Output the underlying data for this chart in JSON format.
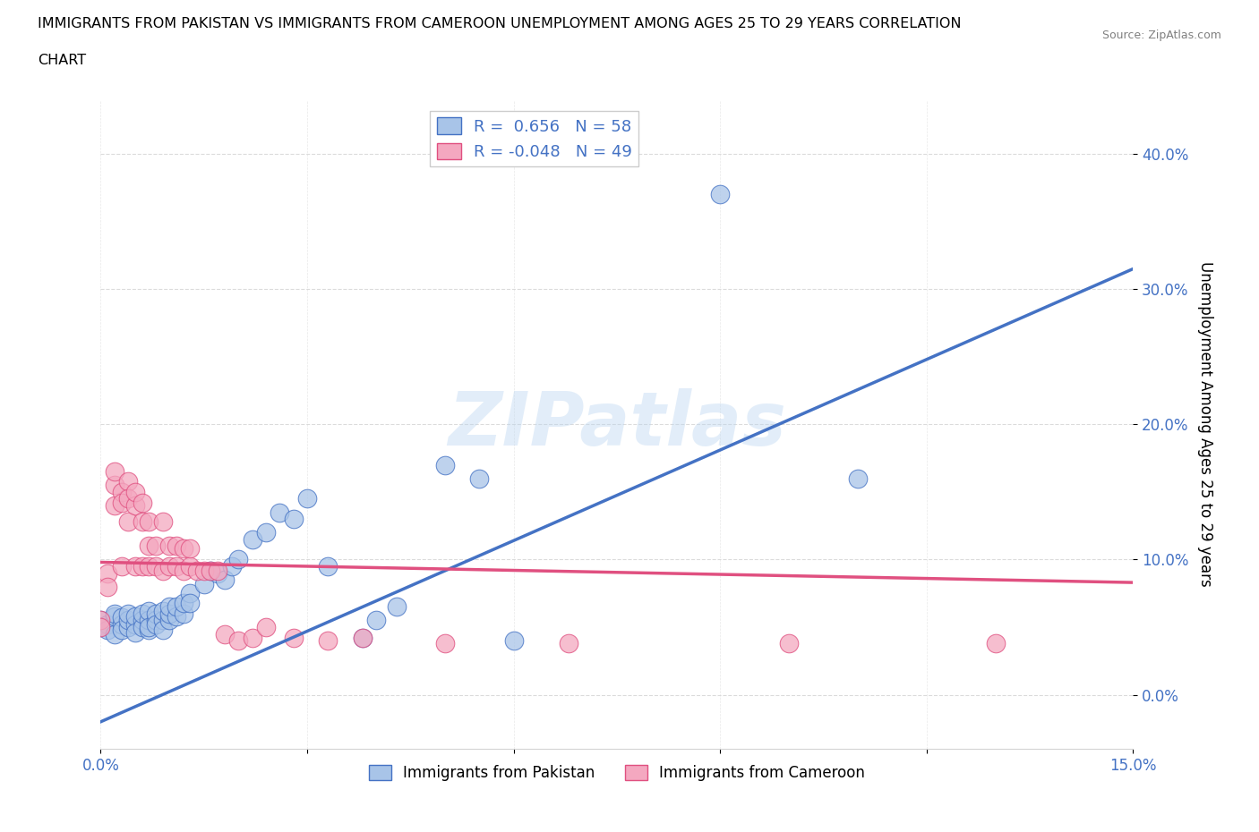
{
  "title_line1": "IMMIGRANTS FROM PAKISTAN VS IMMIGRANTS FROM CAMEROON UNEMPLOYMENT AMONG AGES 25 TO 29 YEARS CORRELATION",
  "title_line2": "CHART",
  "source_text": "Source: ZipAtlas.com",
  "ylabel": "Unemployment Among Ages 25 to 29 years",
  "xlim": [
    0.0,
    0.15
  ],
  "ylim": [
    -0.04,
    0.44
  ],
  "xticks": [
    0.0,
    0.03,
    0.06,
    0.09,
    0.12,
    0.15
  ],
  "xtick_labels": [
    "0.0%",
    "",
    "",
    "",
    "",
    "15.0%"
  ],
  "yticks": [
    0.0,
    0.1,
    0.2,
    0.3,
    0.4
  ],
  "ytick_labels": [
    "0.0%",
    "10.0%",
    "20.0%",
    "30.0%",
    "40.0%"
  ],
  "pakistan_color": "#a8c4e8",
  "cameroon_color": "#f4a8c0",
  "pakistan_line_color": "#4472c4",
  "cameroon_line_color": "#e05080",
  "pakistan_R": 0.656,
  "pakistan_N": 58,
  "cameroon_R": -0.048,
  "cameroon_N": 49,
  "watermark_text": "ZIPatlas",
  "legend_label_pakistan": "Immigrants from Pakistan",
  "legend_label_cameroon": "Immigrants from Cameroon",
  "pak_line_x0": 0.0,
  "pak_line_y0": -0.02,
  "pak_line_x1": 0.15,
  "pak_line_y1": 0.315,
  "cam_line_x0": 0.0,
  "cam_line_y0": 0.098,
  "cam_line_x1": 0.15,
  "cam_line_y1": 0.083,
  "pakistan_scatter": [
    [
      0.0,
      0.055
    ],
    [
      0.0,
      0.05
    ],
    [
      0.001,
      0.052
    ],
    [
      0.001,
      0.048
    ],
    [
      0.002,
      0.058
    ],
    [
      0.002,
      0.045
    ],
    [
      0.002,
      0.06
    ],
    [
      0.003,
      0.052
    ],
    [
      0.003,
      0.057
    ],
    [
      0.003,
      0.048
    ],
    [
      0.004,
      0.05
    ],
    [
      0.004,
      0.055
    ],
    [
      0.004,
      0.06
    ],
    [
      0.005,
      0.052
    ],
    [
      0.005,
      0.058
    ],
    [
      0.005,
      0.046
    ],
    [
      0.006,
      0.055
    ],
    [
      0.006,
      0.05
    ],
    [
      0.006,
      0.06
    ],
    [
      0.007,
      0.048
    ],
    [
      0.007,
      0.055
    ],
    [
      0.007,
      0.062
    ],
    [
      0.007,
      0.05
    ],
    [
      0.008,
      0.055
    ],
    [
      0.008,
      0.06
    ],
    [
      0.008,
      0.052
    ],
    [
      0.009,
      0.055
    ],
    [
      0.009,
      0.062
    ],
    [
      0.009,
      0.048
    ],
    [
      0.01,
      0.055
    ],
    [
      0.01,
      0.06
    ],
    [
      0.01,
      0.065
    ],
    [
      0.011,
      0.058
    ],
    [
      0.011,
      0.065
    ],
    [
      0.012,
      0.06
    ],
    [
      0.012,
      0.068
    ],
    [
      0.013,
      0.075
    ],
    [
      0.013,
      0.068
    ],
    [
      0.015,
      0.082
    ],
    [
      0.016,
      0.092
    ],
    [
      0.017,
      0.09
    ],
    [
      0.018,
      0.085
    ],
    [
      0.019,
      0.095
    ],
    [
      0.02,
      0.1
    ],
    [
      0.022,
      0.115
    ],
    [
      0.024,
      0.12
    ],
    [
      0.026,
      0.135
    ],
    [
      0.028,
      0.13
    ],
    [
      0.03,
      0.145
    ],
    [
      0.033,
      0.095
    ],
    [
      0.038,
      0.042
    ],
    [
      0.04,
      0.055
    ],
    [
      0.043,
      0.065
    ],
    [
      0.05,
      0.17
    ],
    [
      0.055,
      0.16
    ],
    [
      0.06,
      0.04
    ],
    [
      0.09,
      0.37
    ],
    [
      0.11,
      0.16
    ]
  ],
  "cameroon_scatter": [
    [
      0.0,
      0.055
    ],
    [
      0.0,
      0.05
    ],
    [
      0.001,
      0.09
    ],
    [
      0.001,
      0.08
    ],
    [
      0.002,
      0.155
    ],
    [
      0.002,
      0.165
    ],
    [
      0.002,
      0.14
    ],
    [
      0.003,
      0.15
    ],
    [
      0.003,
      0.142
    ],
    [
      0.003,
      0.095
    ],
    [
      0.004,
      0.158
    ],
    [
      0.004,
      0.145
    ],
    [
      0.004,
      0.128
    ],
    [
      0.005,
      0.14
    ],
    [
      0.005,
      0.15
    ],
    [
      0.005,
      0.095
    ],
    [
      0.006,
      0.128
    ],
    [
      0.006,
      0.142
    ],
    [
      0.006,
      0.095
    ],
    [
      0.007,
      0.095
    ],
    [
      0.007,
      0.128
    ],
    [
      0.007,
      0.11
    ],
    [
      0.008,
      0.095
    ],
    [
      0.008,
      0.11
    ],
    [
      0.009,
      0.092
    ],
    [
      0.009,
      0.128
    ],
    [
      0.01,
      0.11
    ],
    [
      0.01,
      0.095
    ],
    [
      0.011,
      0.095
    ],
    [
      0.011,
      0.11
    ],
    [
      0.012,
      0.092
    ],
    [
      0.012,
      0.108
    ],
    [
      0.013,
      0.095
    ],
    [
      0.013,
      0.108
    ],
    [
      0.014,
      0.092
    ],
    [
      0.015,
      0.092
    ],
    [
      0.016,
      0.092
    ],
    [
      0.017,
      0.092
    ],
    [
      0.018,
      0.045
    ],
    [
      0.02,
      0.04
    ],
    [
      0.022,
      0.042
    ],
    [
      0.024,
      0.05
    ],
    [
      0.028,
      0.042
    ],
    [
      0.033,
      0.04
    ],
    [
      0.038,
      0.042
    ],
    [
      0.05,
      0.038
    ],
    [
      0.068,
      0.038
    ],
    [
      0.1,
      0.038
    ],
    [
      0.13,
      0.038
    ]
  ]
}
